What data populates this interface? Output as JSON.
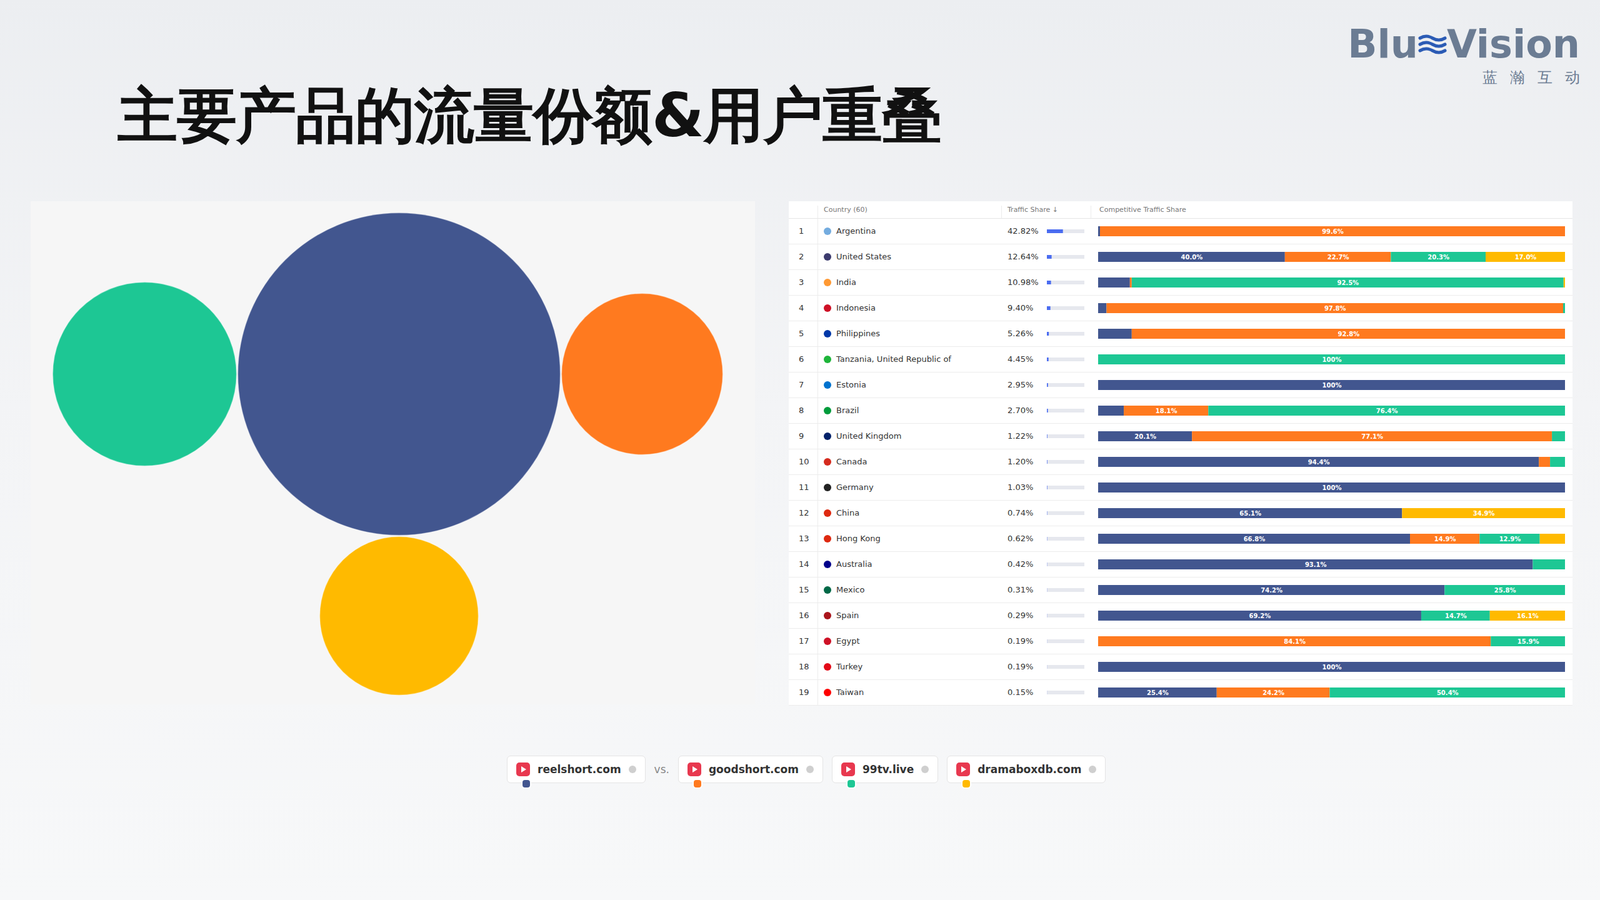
{
  "slide": {
    "title": "主要产品的流量份额&用户重叠",
    "logo_text": [
      "Blu",
      "Vision"
    ],
    "logo_subtitle": "蓝瀚互动"
  },
  "chart_data": [
    {
      "type": "bubble",
      "tick_labels": false,
      "legend": "bottom",
      "legend_separator": "vs.",
      "series": [
        {
          "name": "reelshort.com",
          "color": "#42568f",
          "size": 100
        },
        {
          "name": "goodshort.com",
          "color": "#ff7a1f",
          "size": 25
        },
        {
          "name": "99tv.live",
          "color": "#1dc794",
          "size": 32.5
        },
        {
          "name": "dramaboxdb.com",
          "color": "#ffba00",
          "size": 24.2
        }
      ]
    },
    {
      "type": "bar",
      "orientation": "horizontal",
      "stacked": true,
      "data_labels": true,
      "tick_labels": false,
      "xlim": [
        0,
        100
      ],
      "columns": [
        "Country (60)",
        "Traffic Share ↓",
        "Competitive Traffic Share"
      ],
      "ranks": [
        1,
        2,
        3,
        4,
        5,
        6,
        7,
        8,
        9,
        10,
        11,
        12,
        13,
        14,
        15,
        16,
        17,
        18,
        19
      ],
      "categories": [
        "Argentina",
        "United States",
        "India",
        "Indonesia",
        "Philippines",
        "Tanzania, United Republic of",
        "Estonia",
        "Brazil",
        "United Kingdom",
        "Canada",
        "Germany",
        "China",
        "Hong Kong",
        "Australia",
        "Mexico",
        "Spain",
        "Egypt",
        "Turkey",
        "Taiwan"
      ],
      "traffic_share": {
        "xlim": [
          0,
          100
        ],
        "color": "#4a6cf0",
        "values": [
          42.82,
          12.64,
          10.98,
          9.4,
          5.26,
          4.45,
          2.95,
          2.7,
          1.22,
          1.2,
          1.03,
          0.74,
          0.62,
          0.42,
          0.31,
          0.29,
          0.19,
          0.19,
          0.15
        ],
        "value_labels": [
          "42.82%",
          "12.64%",
          "10.98%",
          "9.40%",
          "5.26%",
          "4.45%",
          "2.95%",
          "2.70%",
          "1.22%",
          "1.20%",
          "1.03%",
          "0.74%",
          "0.62%",
          "0.42%",
          "0.31%",
          "0.29%",
          "0.19%",
          "0.19%",
          "0.15%"
        ]
      },
      "series": [
        {
          "name": "reelshort.com",
          "color": "#42568f",
          "values": [
            0.4,
            40.0,
            6.8,
            1.8,
            7.2,
            0,
            100,
            5.5,
            20.1,
            94.4,
            100,
            65.1,
            66.8,
            93.1,
            74.2,
            69.2,
            0,
            100,
            25.4
          ],
          "value_labels": [
            null,
            "40.0%",
            null,
            null,
            null,
            null,
            "100%",
            null,
            "20.1%",
            "94.4%",
            "100%",
            "65.1%",
            "66.8%",
            "93.1%",
            "74.2%",
            "69.2%",
            null,
            "100%",
            "25.4%"
          ]
        },
        {
          "name": "goodshort.com",
          "color": "#ff7a1f",
          "values": [
            99.6,
            22.7,
            0.4,
            97.8,
            92.8,
            0,
            0,
            18.1,
            77.1,
            2.4,
            0,
            0,
            14.9,
            0,
            0,
            0,
            84.1,
            0,
            24.2
          ],
          "value_labels": [
            "99.6%",
            "22.7%",
            null,
            "97.8%",
            "92.8%",
            null,
            null,
            "18.1%",
            "77.1%",
            null,
            null,
            null,
            "14.9%",
            null,
            null,
            null,
            "84.1%",
            null,
            "24.2%"
          ]
        },
        {
          "name": "99tv.live",
          "color": "#1dc794",
          "values": [
            0,
            20.3,
            92.5,
            0.4,
            0,
            100,
            0,
            76.4,
            2.8,
            3.2,
            0,
            0,
            12.9,
            6.9,
            25.8,
            14.7,
            15.9,
            0,
            50.4
          ],
          "value_labels": [
            null,
            "20.3%",
            "92.5%",
            null,
            null,
            "100%",
            null,
            "76.4%",
            null,
            null,
            null,
            null,
            "12.9%",
            null,
            "25.8%",
            "14.7%",
            "15.9%",
            null,
            "50.4%"
          ]
        },
        {
          "name": "dramaboxdb.com",
          "color": "#ffba00",
          "values": [
            0,
            17.0,
            0.3,
            0,
            0,
            0,
            0,
            0,
            0,
            0,
            0,
            34.9,
            5.4,
            0,
            0,
            16.1,
            0,
            0,
            0
          ],
          "value_labels": [
            null,
            "17.0%",
            null,
            null,
            null,
            null,
            null,
            null,
            null,
            null,
            null,
            "34.9%",
            null,
            null,
            null,
            "16.1%",
            null,
            null,
            null
          ]
        }
      ]
    }
  ]
}
